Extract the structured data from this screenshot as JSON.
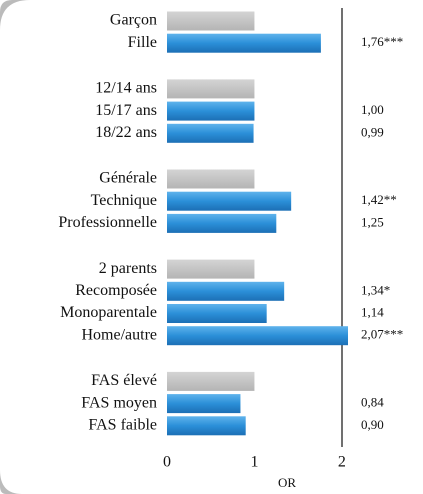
{
  "chart_data": {
    "type": "bar",
    "orientation": "horizontal",
    "x_label": "OR",
    "xlim": [
      0,
      2.07
    ],
    "xticks": [
      0,
      1,
      2
    ],
    "groups": [
      {
        "categories": [
          "Garçon",
          "Fille"
        ],
        "values": [
          1,
          1.76
        ],
        "value_labels": [
          null,
          "1,76***"
        ],
        "colors": [
          "#c3c3c3",
          "#2b8fd8"
        ]
      },
      {
        "categories": [
          "12/14 ans",
          "15/17 ans",
          "18/22 ans"
        ],
        "values": [
          1,
          1.0,
          0.99
        ],
        "value_labels": [
          null,
          "1,00",
          "0,99"
        ],
        "colors": [
          "#c3c3c3",
          "#2b8fd8",
          "#2b8fd8"
        ]
      },
      {
        "categories": [
          "Générale",
          "Technique",
          "Professionnelle"
        ],
        "values": [
          1,
          1.42,
          1.25
        ],
        "value_labels": [
          null,
          "1,42**",
          "1,25"
        ],
        "colors": [
          "#c3c3c3",
          "#2b8fd8",
          "#2b8fd8"
        ]
      },
      {
        "categories": [
          "2 parents",
          "Recomposée",
          "Monoparentale",
          "Home/autre"
        ],
        "values": [
          1,
          1.34,
          1.14,
          2.07
        ],
        "value_labels": [
          null,
          "1,34*",
          "1,14",
          "2,07***"
        ],
        "colors": [
          "#c3c3c3",
          "#2b8fd8",
          "#2b8fd8",
          "#2b8fd8"
        ]
      },
      {
        "categories": [
          "FAS élevé",
          "FAS moyen",
          "FAS faible"
        ],
        "values": [
          1,
          0.84,
          0.9
        ],
        "value_labels": [
          null,
          "0,84",
          "0,90"
        ],
        "colors": [
          "#c3c3c3",
          "#2b8fd8",
          "#2b8fd8"
        ]
      }
    ]
  }
}
